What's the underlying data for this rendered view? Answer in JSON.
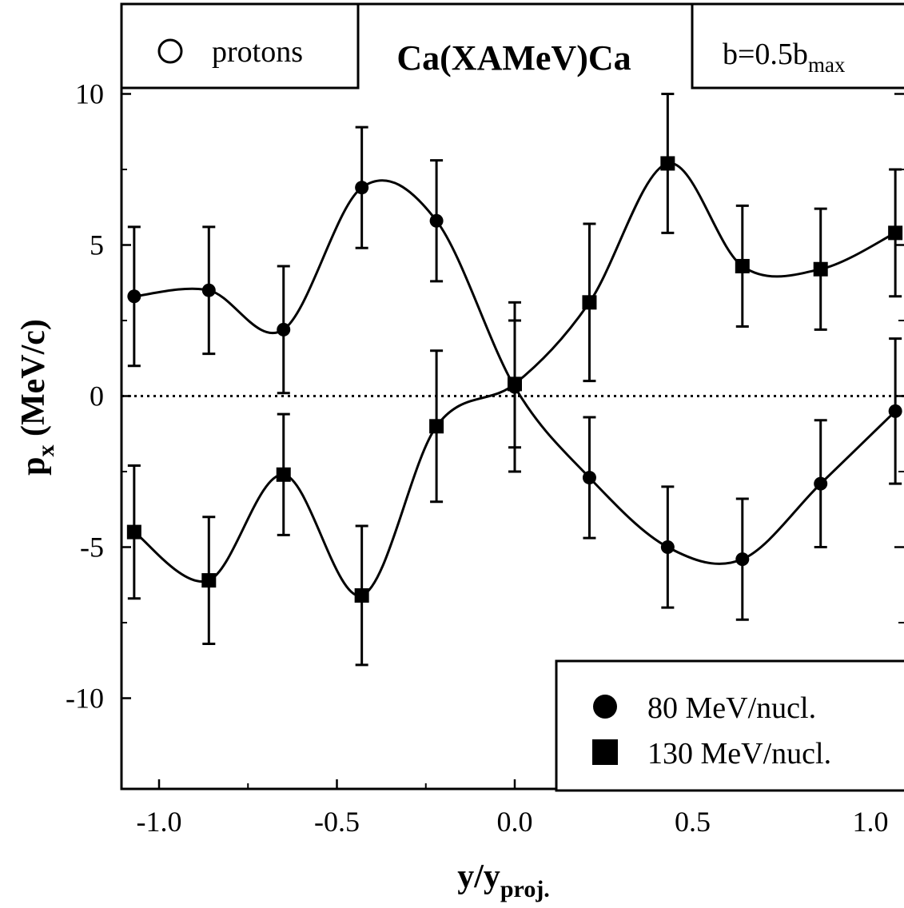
{
  "chart_data": {
    "type": "line",
    "title": "Ca(XAMeV)Ca",
    "panel_labels": {
      "particle": "protons",
      "impact_parameter": {
        "text": "b=0.5b",
        "subscript": "max"
      }
    },
    "xlabel": {
      "main": "y/y",
      "subscript": "proj."
    },
    "ylabel": {
      "main": "p",
      "subscript": "x",
      "suffix": " (MeV/c)"
    },
    "xlim": [
      -1.1,
      1.1
    ],
    "ylim": [
      -12.5,
      12.5
    ],
    "x_ticks": [
      {
        "value": -1.0,
        "label": "-1.0"
      },
      {
        "value": -0.5,
        "label": "-0.5"
      },
      {
        "value": 0.0,
        "label": "0.0"
      },
      {
        "value": 0.5,
        "label": "0.5"
      },
      {
        "value": 1.0,
        "label": "1.0"
      }
    ],
    "y_ticks": [
      {
        "value": 10,
        "label": "10"
      },
      {
        "value": 5,
        "label": "5"
      },
      {
        "value": 0,
        "label": "0"
      },
      {
        "value": -5,
        "label": "-5"
      },
      {
        "value": -10,
        "label": "-10"
      }
    ],
    "reference_line_y": 0,
    "series": [
      {
        "name": "80 MeV/nucl.",
        "marker": "circle",
        "color": "#000000",
        "x": [
          -1.07,
          -0.86,
          -0.65,
          -0.43,
          -0.22,
          0.0,
          0.21,
          0.43,
          0.64,
          0.86,
          1.07
        ],
        "y": [
          3.3,
          3.5,
          2.2,
          6.9,
          5.8,
          0.3,
          -2.7,
          -5.0,
          -5.4,
          -2.9,
          -0.5
        ],
        "err": [
          2.3,
          2.1,
          2.1,
          2.0,
          2.0,
          2.8,
          2.0,
          2.0,
          2.0,
          2.1,
          2.4
        ]
      },
      {
        "name": "130 MeV/nucl.",
        "marker": "square",
        "color": "#000000",
        "x": [
          -1.07,
          -0.86,
          -0.65,
          -0.43,
          -0.22,
          0.0,
          0.21,
          0.43,
          0.64,
          0.86,
          1.07
        ],
        "y": [
          -4.5,
          -6.1,
          -2.6,
          -6.6,
          -1.0,
          0.4,
          3.1,
          7.7,
          4.3,
          4.2,
          5.4
        ],
        "err": [
          2.2,
          2.1,
          2.0,
          2.3,
          2.5,
          2.1,
          2.6,
          2.3,
          2.0,
          2.0,
          2.1
        ]
      }
    ],
    "legend": {
      "placement": "bottom-right"
    },
    "grid": false
  }
}
